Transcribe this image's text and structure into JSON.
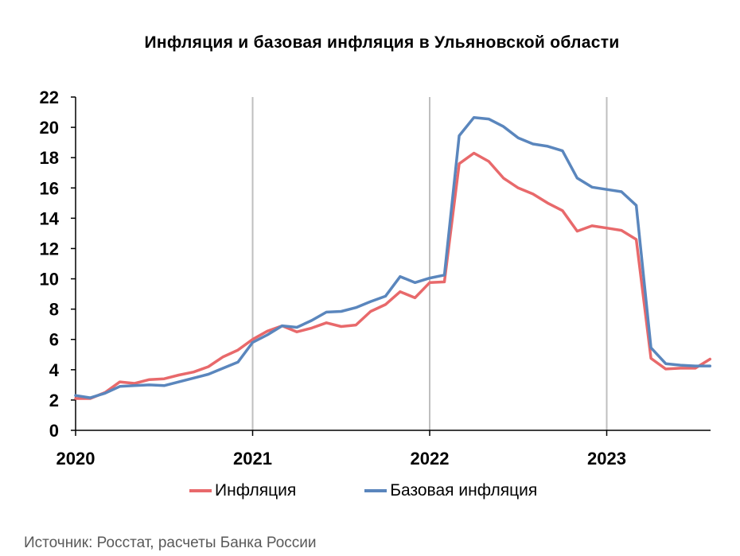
{
  "chart_data": {
    "type": "line",
    "title": "Инфляция и базовая инфляция в Ульяновской области",
    "xlabel": "",
    "ylabel": "",
    "ylim": [
      0,
      22
    ],
    "yticks": [
      0,
      2,
      4,
      6,
      8,
      10,
      12,
      14,
      16,
      18,
      20,
      22
    ],
    "xticks": [
      {
        "label": "2020",
        "month_index": 0
      },
      {
        "label": "2021",
        "month_index": 12
      },
      {
        "label": "2022",
        "month_index": 24
      },
      {
        "label": "2023",
        "month_index": 36
      }
    ],
    "x_range_months": [
      0,
      43
    ],
    "grid": "vertical",
    "legend_position": "bottom",
    "series": [
      {
        "name": "Инфляция",
        "color": "#E8696B",
        "values": [
          2.1,
          2.1,
          2.5,
          3.2,
          3.1,
          3.35,
          3.4,
          3.65,
          3.85,
          4.2,
          4.85,
          5.3,
          6.0,
          6.55,
          6.9,
          6.5,
          6.75,
          7.1,
          6.85,
          6.95,
          7.85,
          8.3,
          9.15,
          8.75,
          9.75,
          9.8,
          17.6,
          18.3,
          17.75,
          16.65,
          16.0,
          15.6,
          15.0,
          14.5,
          13.15,
          13.5,
          13.35,
          13.2,
          12.6,
          4.75,
          4.05,
          4.1,
          4.1,
          4.7
        ]
      },
      {
        "name": "Базовая инфляция",
        "color": "#5A86BD",
        "values": [
          2.3,
          2.15,
          2.45,
          2.9,
          2.95,
          3.0,
          2.95,
          3.2,
          3.45,
          3.7,
          4.1,
          4.5,
          5.8,
          6.3,
          6.9,
          6.8,
          7.25,
          7.8,
          7.85,
          8.1,
          8.5,
          8.85,
          10.15,
          9.75,
          10.05,
          10.25,
          19.45,
          20.65,
          20.55,
          20.05,
          19.3,
          18.9,
          18.75,
          18.45,
          16.65,
          16.05,
          15.9,
          15.75,
          14.85,
          5.45,
          4.4,
          4.3,
          4.25,
          4.25
        ]
      }
    ]
  },
  "source": "Источник: Росстат, расчеты Банка России"
}
